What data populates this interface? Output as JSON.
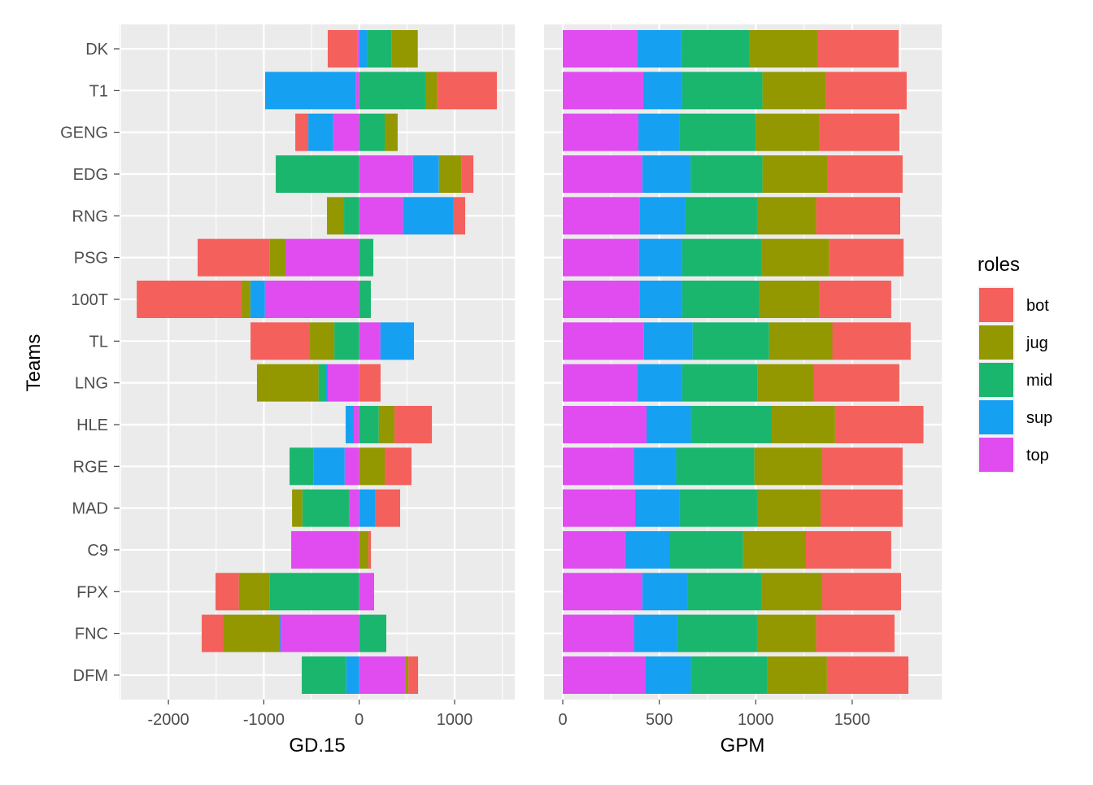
{
  "y_axis_title": "Teams",
  "legend": {
    "title": "roles",
    "entries": [
      "bot",
      "jug",
      "mid",
      "sup",
      "top"
    ]
  },
  "colors": {
    "bot": "#F4605B",
    "jug": "#939800",
    "mid": "#1AB66E",
    "sup": "#16A0F2",
    "top": "#E04CF0"
  },
  "chart_data": [
    {
      "type": "bar",
      "orientation": "horizontal",
      "stacked": true,
      "xlabel": "GD.15",
      "ylabel": "Teams",
      "xlim": [
        -2500,
        1650
      ],
      "xticks": [
        -2000,
        -1000,
        0,
        1000
      ],
      "tick_labels": [
        "-2000",
        "-1000",
        "0",
        "1000"
      ],
      "categories": [
        "DK",
        "T1",
        "GENG",
        "EDG",
        "RNG",
        "PSG",
        "100T",
        "TL",
        "LNG",
        "HLE",
        "RGE",
        "MAD",
        "C9",
        "FPX",
        "FNC",
        "DFM"
      ],
      "series": [
        {
          "name": "top",
          "values": [
            -17,
            -34,
            -273,
            563,
            460,
            -773,
            -989,
            222,
            -330,
            -57,
            -153,
            -102,
            -713,
            156,
            -824,
            489
          ]
        },
        {
          "name": "sup",
          "values": [
            80,
            -952,
            -261,
            273,
            523,
            0,
            -153,
            352,
            -17,
            -85,
            -324,
            165,
            0,
            0,
            -17,
            -136
          ]
        },
        {
          "name": "mid",
          "values": [
            261,
            693,
            267,
            -875,
            -159,
            148,
            122,
            -261,
            -80,
            205,
            -253,
            -494,
            0,
            -938,
            284,
            -466
          ]
        },
        {
          "name": "jug",
          "values": [
            273,
            125,
            136,
            239,
            -179,
            -165,
            -91,
            -256,
            -645,
            165,
            267,
            -108,
            97,
            -324,
            -580,
            26
          ]
        },
        {
          "name": "bot",
          "values": [
            -313,
            625,
            -136,
            122,
            128,
            -756,
            -1099,
            -622,
            224,
            392,
            281,
            264,
            26,
            -244,
            -230,
            102
          ]
        }
      ],
      "grid": true
    },
    {
      "type": "bar",
      "orientation": "horizontal",
      "stacked": true,
      "xlabel": "GPM",
      "ylabel": "",
      "xlim": [
        0,
        1960
      ],
      "xticks": [
        0,
        500,
        1000,
        1500
      ],
      "tick_labels": [
        "0",
        "500",
        "1000",
        "1500"
      ],
      "categories": [
        "DK",
        "T1",
        "GENG",
        "EDG",
        "RNG",
        "PSG",
        "100T",
        "TL",
        "LNG",
        "HLE",
        "RGE",
        "MAD",
        "C9",
        "FPX",
        "FNC",
        "DFM"
      ],
      "series": [
        {
          "name": "top",
          "values": [
            386,
            417,
            392,
            412,
            400,
            395,
            400,
            420,
            386,
            434,
            369,
            375,
            324,
            412,
            369,
            428
          ]
        },
        {
          "name": "sup",
          "values": [
            228,
            202,
            213,
            250,
            236,
            224,
            219,
            253,
            233,
            230,
            219,
            228,
            228,
            235,
            225,
            236
          ]
        },
        {
          "name": "mid",
          "values": [
            351,
            416,
            394,
            373,
            371,
            413,
            399,
            396,
            391,
            419,
            405,
            404,
            382,
            385,
            413,
            394
          ]
        },
        {
          "name": "jug",
          "values": [
            354,
            329,
            331,
            337,
            306,
            349,
            312,
            328,
            292,
            328,
            351,
            329,
            326,
            312,
            306,
            311
          ]
        },
        {
          "name": "bot",
          "values": [
            421,
            418,
            414,
            389,
            436,
            385,
            372,
            406,
            442,
            458,
            417,
            425,
            442,
            409,
            406,
            422
          ]
        }
      ],
      "grid": true
    }
  ]
}
